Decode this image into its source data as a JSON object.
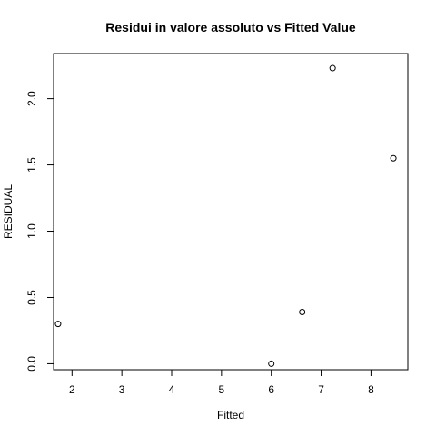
{
  "chart_data": {
    "type": "scatter",
    "title": "Residui in valore assoluto vs Fitted Value",
    "xlabel": "Fitted",
    "ylabel": "RESIDUAL",
    "x_ticks": [
      "2",
      "3",
      "4",
      "5",
      "6",
      "7",
      "8"
    ],
    "y_ticks": [
      "0.0",
      "0.5",
      "1.0",
      "1.5",
      "2.0"
    ],
    "xlim": [
      1.63,
      8.74
    ],
    "ylim": [
      -0.045,
      2.34
    ],
    "grid": false,
    "legend": "none",
    "marker": "open-circle",
    "points": [
      {
        "x": 1.72,
        "y": 0.3
      },
      {
        "x": 6.0,
        "y": 0.0
      },
      {
        "x": 6.62,
        "y": 0.39
      },
      {
        "x": 7.23,
        "y": 2.23
      },
      {
        "x": 8.45,
        "y": 1.55
      }
    ]
  }
}
